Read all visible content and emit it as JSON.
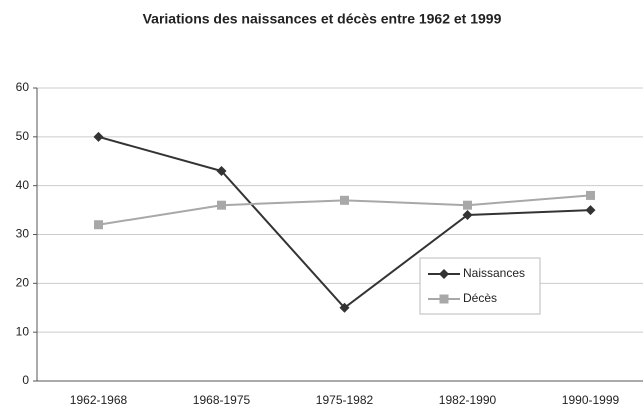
{
  "chart_data": {
    "type": "line",
    "title": "Variations des naissances et décès entre 1962 et 1999",
    "categories": [
      "1962-1968",
      "1968-1975",
      "1975-1982",
      "1982-1990",
      "1990-1999"
    ],
    "series": [
      {
        "name": "Naissances",
        "color": "#333333",
        "marker": "diamond",
        "values": [
          50,
          43,
          15,
          34,
          35
        ]
      },
      {
        "name": "Décès",
        "color": "#a8a8a8",
        "marker": "square",
        "values": [
          32,
          36,
          37,
          36,
          38
        ]
      }
    ],
    "ylim": [
      0,
      60
    ],
    "yticks": [
      0,
      10,
      20,
      30,
      40,
      50,
      60
    ],
    "grid": true
  }
}
